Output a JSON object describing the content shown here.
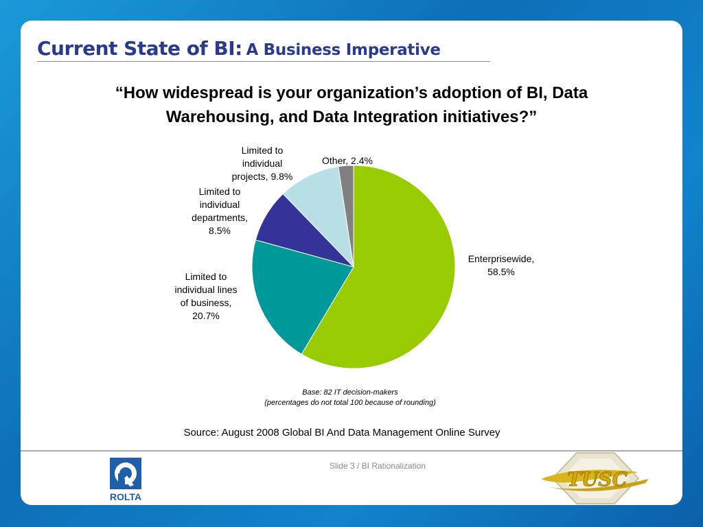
{
  "slide": {
    "title_main": "Current State of BI:",
    "title_sub": "A Business Imperative",
    "question_line1": "“How widespread is your organization’s adoption of BI, Data",
    "question_line2": "Warehousing, and Data Integration initiatives?”",
    "base_line1": "Base: 82 IT decision-makers",
    "base_line2": "(percentages do not total 100 because of rounding)",
    "source": "Source: August 2008 Global BI And Data Management Online Survey",
    "footer": "Slide 3  /  BI Rationalization",
    "logo_left_text": "ROLTA",
    "logo_right_text": "TUSC"
  },
  "colors": {
    "background": "#1184cc",
    "title": "#2a3a8c"
  },
  "chart_data": {
    "type": "pie",
    "title": "",
    "slices": [
      {
        "label": "Enterprisewide",
        "value": 58.5,
        "color": "#99cc00",
        "label_lines": [
          "Enterprisewide,",
          "58.5%"
        ]
      },
      {
        "label": "Limited to individual lines of business",
        "value": 20.7,
        "color": "#009999",
        "label_lines": [
          "Limited to",
          "individual lines",
          "of business,",
          "20.7%"
        ]
      },
      {
        "label": "Limited to individual departments",
        "value": 8.5,
        "color": "#333399",
        "label_lines": [
          "Limited to",
          "individual",
          "departments,",
          "8.5%"
        ]
      },
      {
        "label": "Limited to individual projects",
        "value": 9.8,
        "color": "#b7dfe5",
        "label_lines": [
          "Limited to",
          "individual",
          "projects, 9.8%"
        ]
      },
      {
        "label": "Other",
        "value": 2.4,
        "color": "#808080",
        "label_lines": [
          "Other, 2.4%"
        ]
      }
    ]
  }
}
